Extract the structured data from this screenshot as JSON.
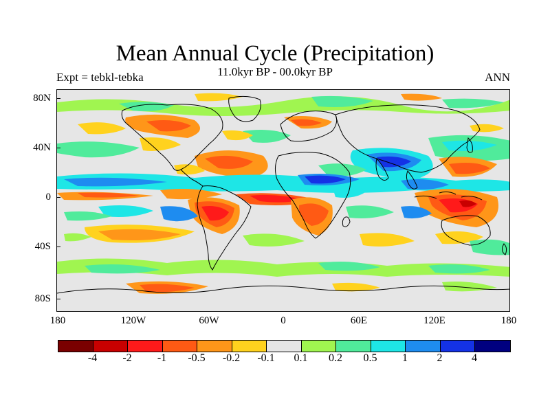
{
  "title": "Mean Annual Cycle (Precipitation)",
  "subtitle": "11.0kyr BP - 00.0kyr BP",
  "experiment": "Expt = tebkl-tebka",
  "season": "ANN",
  "lat_labels": [
    "80N",
    "40N",
    "0",
    "40S",
    "80S"
  ],
  "lon_labels": [
    "180",
    "120W",
    "60W",
    "0",
    "60E",
    "120E",
    "180"
  ],
  "colorbar": {
    "colors": [
      "#7a0000",
      "#c80000",
      "#ff1a1a",
      "#ff5a14",
      "#ff9619",
      "#ffd21e",
      "#e6e6e6",
      "#a0f550",
      "#50eb9b",
      "#1ee6e6",
      "#1e8cf0",
      "#1432e6",
      "#000080"
    ],
    "labels": [
      "-4",
      "-2",
      "-1",
      "-0.5",
      "-0.2",
      "-0.1",
      "0.1",
      "0.2",
      "0.5",
      "1",
      "2",
      "4"
    ]
  }
}
